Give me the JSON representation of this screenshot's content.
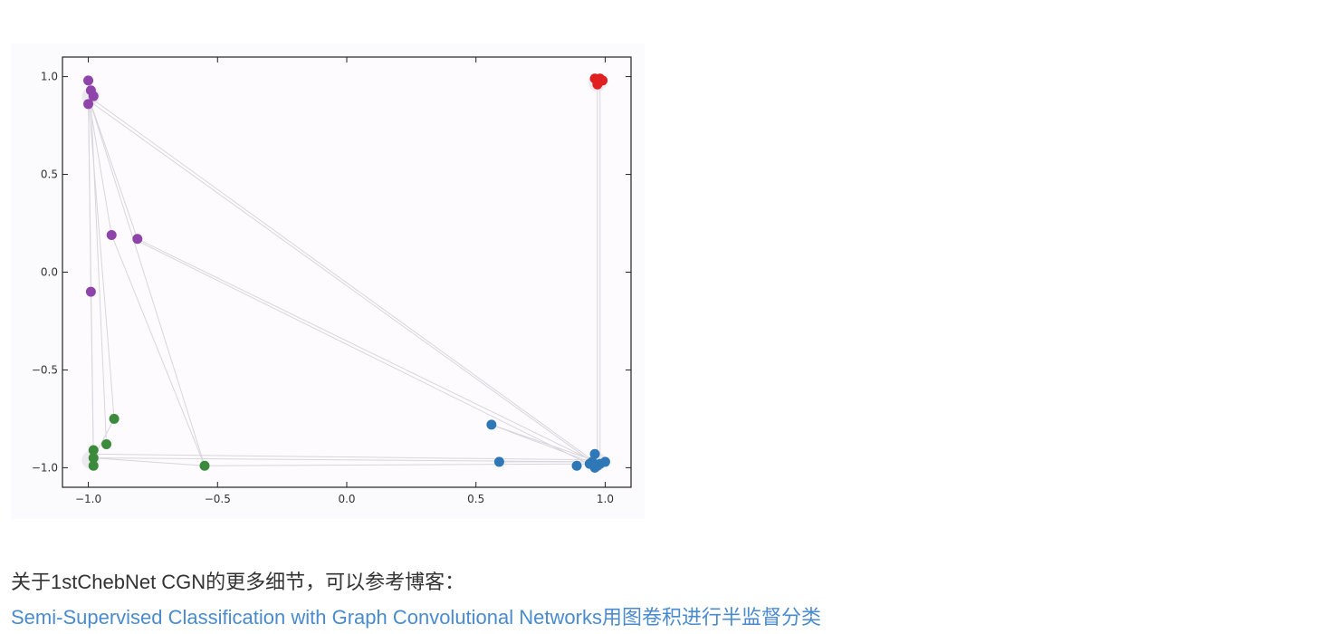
{
  "article": {
    "caption": "关于1stChebNet CGN的更多细节，可以参考博客：",
    "link_text": "Semi-Supervised Classification with Graph Convolutional Networks用图卷积进行半监督分类"
  },
  "chart_data": {
    "type": "scatter",
    "title": "",
    "xlabel": "",
    "ylabel": "",
    "xlim": [
      -1.1,
      1.1
    ],
    "ylim": [
      -1.1,
      1.1
    ],
    "grid": false,
    "xticks": [
      -1.0,
      -0.5,
      0.0,
      0.5,
      1.0
    ],
    "yticks": [
      1.0,
      0.5,
      0.0,
      -0.5,
      -1.0
    ],
    "xtick_labels": [
      "−1.0",
      "−0.5",
      "0.0",
      "0.5",
      "1.0"
    ],
    "ytick_labels": [
      "1.0",
      "0.5",
      "0.0",
      "−0.5",
      "−1.0"
    ],
    "series": [
      {
        "color": "#8e44a8",
        "points": [
          [
            -1.0,
            0.98
          ],
          [
            -0.99,
            0.93
          ],
          [
            -0.98,
            0.9
          ],
          [
            -1.0,
            0.86
          ],
          [
            -0.91,
            0.19
          ],
          [
            -0.81,
            0.17
          ],
          [
            -0.99,
            -0.1
          ]
        ]
      },
      {
        "color": "#e02020",
        "points": [
          [
            0.96,
            0.99
          ],
          [
            0.98,
            0.99
          ],
          [
            0.97,
            0.96
          ],
          [
            0.99,
            0.98
          ]
        ]
      },
      {
        "color": "#3c8a3c",
        "points": [
          [
            -0.98,
            -0.91
          ],
          [
            -0.93,
            -0.88
          ],
          [
            -0.9,
            -0.75
          ],
          [
            -0.98,
            -0.95
          ],
          [
            -0.98,
            -0.99
          ],
          [
            -0.55,
            -0.99
          ]
        ]
      },
      {
        "color": "#2f78b8",
        "points": [
          [
            0.56,
            -0.78
          ],
          [
            0.59,
            -0.97
          ],
          [
            0.89,
            -0.99
          ],
          [
            0.96,
            -0.93
          ],
          [
            0.95,
            -0.97
          ],
          [
            0.97,
            -0.99
          ],
          [
            1.0,
            -0.97
          ],
          [
            0.96,
            -1.0
          ],
          [
            0.94,
            -0.98
          ],
          [
            0.98,
            -0.98
          ]
        ]
      }
    ],
    "edges": [
      [
        [
          -1.0,
          0.9
        ],
        [
          -0.9,
          -0.75
        ]
      ],
      [
        [
          -1.0,
          0.9
        ],
        [
          -0.55,
          -0.99
        ]
      ],
      [
        [
          -1.0,
          0.9
        ],
        [
          -0.98,
          -0.95
        ]
      ],
      [
        [
          -0.99,
          0.88
        ],
        [
          -0.93,
          -0.88
        ]
      ],
      [
        [
          -1.0,
          0.9
        ],
        [
          0.96,
          -0.97
        ]
      ],
      [
        [
          -0.99,
          0.87
        ],
        [
          0.97,
          -0.99
        ]
      ],
      [
        [
          -0.81,
          0.17
        ],
        [
          0.96,
          -0.97
        ]
      ],
      [
        [
          -0.81,
          0.16
        ],
        [
          0.95,
          -0.99
        ]
      ],
      [
        [
          -0.91,
          0.19
        ],
        [
          -0.55,
          -0.99
        ]
      ],
      [
        [
          -1.0,
          0.9
        ],
        [
          -0.99,
          -0.1
        ]
      ],
      [
        [
          -1.0,
          0.9
        ],
        [
          -0.91,
          0.19
        ]
      ],
      [
        [
          -1.0,
          0.9
        ],
        [
          -0.81,
          0.17
        ]
      ],
      [
        [
          -0.98,
          -0.95
        ],
        [
          0.96,
          -0.97
        ]
      ],
      [
        [
          -0.98,
          -0.93
        ],
        [
          0.95,
          -0.96
        ]
      ],
      [
        [
          -0.98,
          -0.95
        ],
        [
          -0.55,
          -0.99
        ]
      ],
      [
        [
          -0.55,
          -0.99
        ],
        [
          0.96,
          -0.98
        ]
      ],
      [
        [
          0.56,
          -0.78
        ],
        [
          0.96,
          -0.98
        ]
      ],
      [
        [
          0.56,
          -0.78
        ],
        [
          0.95,
          -0.96
        ]
      ],
      [
        [
          0.59,
          -0.97
        ],
        [
          0.96,
          -0.97
        ]
      ],
      [
        [
          0.97,
          0.96
        ],
        [
          0.97,
          -0.97
        ]
      ],
      [
        [
          0.98,
          0.97
        ],
        [
          0.98,
          -0.96
        ]
      ],
      [
        [
          -0.99,
          -0.1
        ],
        [
          -0.98,
          -0.95
        ]
      ],
      [
        [
          -0.9,
          -0.75
        ],
        [
          -0.98,
          -0.95
        ]
      ]
    ]
  }
}
